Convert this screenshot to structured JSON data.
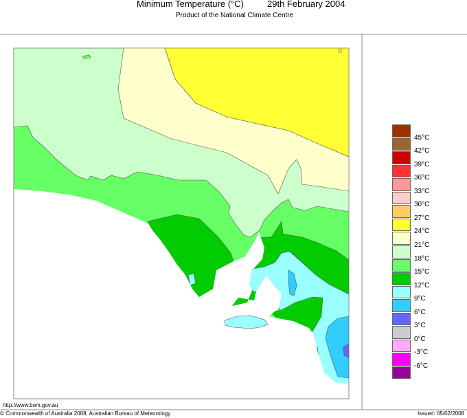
{
  "header": {
    "title": "Minimum Temperature (°C)",
    "date": "29th February 2004",
    "subtitle": "Product of the National Climate Centre"
  },
  "legend": {
    "colors": [
      "#993300",
      "#996633",
      "#cc0000",
      "#ff3333",
      "#ff9999",
      "#ffcccc",
      "#ffcc66",
      "#ffff33",
      "#ffffcc",
      "#ccffcc",
      "#66ff66",
      "#00cc00",
      "#99ffff",
      "#33ccff",
      "#6666ff",
      "#cccccc",
      "#ffaaff",
      "#ff00ff",
      "#990099"
    ],
    "labels": [
      "45°C",
      "42°C",
      "39°C",
      "36°C",
      "33°C",
      "30°C",
      "27°C",
      "24°C",
      "21°C",
      "18°C",
      "15°C",
      "12°C",
      "9°C",
      "6°C",
      "3°C",
      "0°C",
      "-3°C",
      "-6°C"
    ]
  },
  "footer": {
    "url": "http://www.bom.gov.au",
    "copyright": "© Commonwealth of Australia 2008, Australian Bureau of Meteorology",
    "issued": "Issued: 05/02/2008"
  }
}
